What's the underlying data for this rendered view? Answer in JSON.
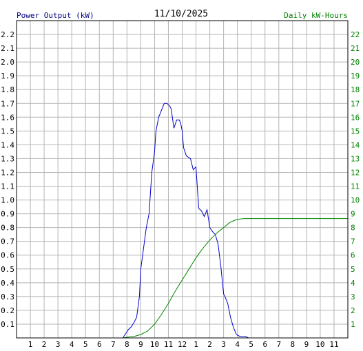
{
  "chart_data": {
    "type": "line",
    "date": "11/10/2025",
    "ylabel_left": "Power Output (kW)",
    "ylabel_right": "Daily kW-Hours",
    "xticks": [
      "1",
      "2",
      "3",
      "4",
      "5",
      "6",
      "7",
      "8",
      "9",
      "10",
      "11",
      "12",
      "1",
      "2",
      "3",
      "4",
      "5",
      "6",
      "7",
      "8",
      "9",
      "10",
      "11"
    ],
    "ylim_left": [
      0,
      2.3
    ],
    "ylim_right": [
      0,
      23
    ],
    "yticks_left": [
      "0.1",
      "0.2",
      "0.3",
      "0.4",
      "0.5",
      "0.6",
      "0.7",
      "0.8",
      "0.9",
      "1.0",
      "1.1",
      "1.2",
      "1.3",
      "1.4",
      "1.5",
      "1.6",
      "1.7",
      "1.8",
      "1.9",
      "2.0",
      "2.1",
      "2.2"
    ],
    "yticks_right": [
      "1",
      "2",
      "3",
      "4",
      "5",
      "6",
      "7",
      "8",
      "9",
      "10",
      "11",
      "12",
      "13",
      "14",
      "15",
      "16",
      "17",
      "18",
      "19",
      "20",
      "21",
      "22"
    ],
    "grid": true,
    "colors": {
      "power": "#0000cc",
      "energy": "#008800",
      "grid": "#b4b4b4",
      "left_axis_text": "#000080",
      "right_axis_text": "#008000"
    },
    "series": [
      {
        "name": "Power Output (kW)",
        "axis": "left",
        "x": [
          7.7,
          7.9,
          8.1,
          8.3,
          8.5,
          8.7,
          8.9,
          9.0,
          9.2,
          9.4,
          9.6,
          9.8,
          10.0,
          10.1,
          10.3,
          10.5,
          10.7,
          10.9,
          11.1,
          11.2,
          11.4,
          11.6,
          11.8,
          11.9,
          12.0,
          12.1,
          12.3,
          12.6,
          12.8,
          13.0,
          13.2,
          13.4,
          13.6,
          13.8,
          14.0,
          14.2,
          14.4,
          14.6,
          14.8,
          15.0,
          15.1,
          15.3,
          15.5,
          15.7,
          15.9,
          16.0,
          16.2,
          16.4,
          16.6,
          16.8,
          17.0,
          17.2,
          17.4,
          17.6,
          17.8,
          18.0,
          18.2,
          18.4
        ],
        "y": [
          0.0,
          0.03,
          0.06,
          0.08,
          0.11,
          0.15,
          0.3,
          0.5,
          0.65,
          0.8,
          0.9,
          1.2,
          1.35,
          1.5,
          1.6,
          1.65,
          1.7,
          1.7,
          1.68,
          1.66,
          1.52,
          1.58,
          1.58,
          1.55,
          1.5,
          1.38,
          1.32,
          1.3,
          1.22,
          1.24,
          0.94,
          0.92,
          0.88,
          0.93,
          0.8,
          0.77,
          0.75,
          0.68,
          0.52,
          0.32,
          0.3,
          0.25,
          0.15,
          0.08,
          0.03,
          0.02,
          0.01,
          0.01,
          0.01,
          0.0,
          0.0,
          0.0,
          0.0,
          0.0,
          0.0,
          0.0,
          0.0,
          0.0
        ]
      },
      {
        "name": "Daily kW-Hours",
        "axis": "right",
        "x": [
          7.7,
          8.0,
          8.5,
          9.0,
          9.5,
          10.0,
          10.5,
          11.0,
          11.5,
          12.0,
          12.5,
          13.0,
          13.5,
          14.0,
          14.5,
          15.0,
          15.5,
          16.0,
          16.5,
          17.0,
          18.0,
          19.0,
          20.0,
          21.0,
          22.0,
          23.0,
          24.0
        ],
        "y": [
          0.0,
          0.05,
          0.1,
          0.25,
          0.5,
          1.0,
          1.7,
          2.5,
          3.4,
          4.2,
          5.0,
          5.8,
          6.5,
          7.1,
          7.6,
          8.0,
          8.4,
          8.6,
          8.65,
          8.65,
          8.65,
          8.65,
          8.65,
          8.65,
          8.65,
          8.65,
          8.65
        ]
      }
    ]
  }
}
